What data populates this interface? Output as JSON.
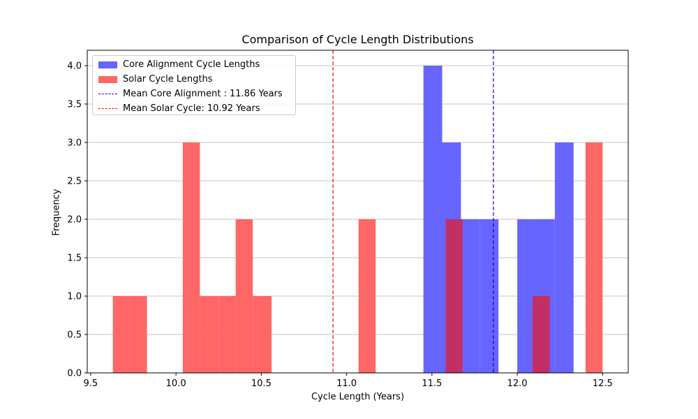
{
  "chart_data": {
    "type": "histogram",
    "title": "Comparison of Cycle Length Distributions",
    "xlabel": "Cycle Length (Years)",
    "ylabel": "Frequency",
    "xlim": [
      9.48,
      12.65
    ],
    "ylim": [
      0,
      4.2
    ],
    "x_ticks": [
      "9.5",
      "10.0",
      "10.5",
      "11.0",
      "11.5",
      "12.0",
      "12.5"
    ],
    "y_ticks": [
      "0.0",
      "0.5",
      "1.0",
      "1.5",
      "2.0",
      "2.5",
      "3.0",
      "3.5",
      "4.0"
    ],
    "grid": "y-axis only",
    "legend_position": "top-left",
    "series": [
      {
        "name": "Core Alignment Cycle Lengths",
        "color": "#6666ff",
        "bins": [
          {
            "x0": 11.45,
            "x1": 11.56,
            "count": 4
          },
          {
            "x0": 11.56,
            "x1": 11.67,
            "count": 3
          },
          {
            "x0": 11.67,
            "x1": 11.78,
            "count": 2
          },
          {
            "x0": 11.78,
            "x1": 11.89,
            "count": 2
          },
          {
            "x0": 11.89,
            "x1": 12.0,
            "count": 0
          },
          {
            "x0": 12.0,
            "x1": 12.11,
            "count": 2
          },
          {
            "x0": 12.11,
            "x1": 12.22,
            "count": 2
          },
          {
            "x0": 12.22,
            "x1": 12.33,
            "count": 3
          }
        ]
      },
      {
        "name": "Solar Cycle Lengths",
        "color": "#ff6666",
        "bins": [
          {
            "x0": 9.63,
            "x1": 9.73,
            "count": 1
          },
          {
            "x0": 9.73,
            "x1": 9.83,
            "count": 1
          },
          {
            "x0": 10.04,
            "x1": 10.14,
            "count": 3
          },
          {
            "x0": 10.14,
            "x1": 10.25,
            "count": 1
          },
          {
            "x0": 10.25,
            "x1": 10.35,
            "count": 1
          },
          {
            "x0": 10.35,
            "x1": 10.45,
            "count": 2
          },
          {
            "x0": 10.45,
            "x1": 10.56,
            "count": 1
          },
          {
            "x0": 11.07,
            "x1": 11.17,
            "count": 2
          },
          {
            "x0": 11.58,
            "x1": 11.68,
            "count": 2
          },
          {
            "x0": 12.09,
            "x1": 12.19,
            "count": 1
          },
          {
            "x0": 12.4,
            "x1": 12.5,
            "count": 3
          }
        ]
      }
    ],
    "mean_lines": [
      {
        "name": "Mean Core Alignment : 11.86 Years",
        "value": 11.86,
        "color": "#0000ff"
      },
      {
        "name": "Mean Solar Cycle: 10.92 Years",
        "value": 10.92,
        "color": "#ff0000"
      }
    ]
  }
}
